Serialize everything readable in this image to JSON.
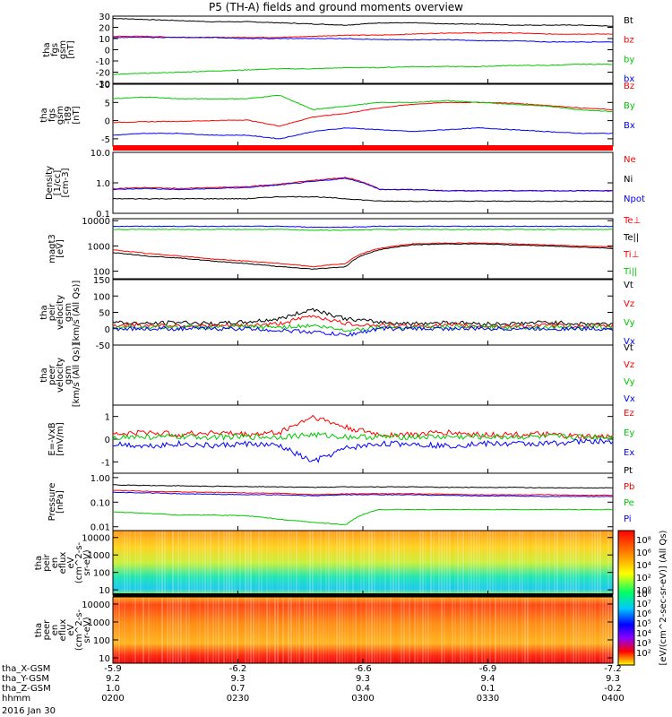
{
  "title": "P5 (TH-A) fields and ground moments overview",
  "colors": {
    "black": "#000000",
    "red": "#ff0000",
    "green": "#00c800",
    "blue": "#0000ff"
  },
  "chart_data": [
    {
      "type": "line",
      "ylabel": [
        "tha",
        "fgs",
        "gsm",
        "[nT]"
      ],
      "yticks": [
        "30",
        "20",
        "10",
        "0",
        "-10",
        "-20",
        "-30"
      ],
      "ylim": [
        -30,
        30
      ],
      "legend": [
        {
          "name": "Bt",
          "color": "#000000"
        },
        {
          "name": "bz",
          "color": "#ff0000"
        },
        {
          "name": "by",
          "color": "#00c800"
        },
        {
          "name": "bx",
          "color": "#0000ff"
        }
      ],
      "series": [
        {
          "name": "Bt",
          "color": "#000000",
          "values": [
            28,
            27,
            26,
            25,
            25,
            24,
            23,
            22,
            24,
            24,
            23,
            23,
            22,
            22,
            22,
            21
          ]
        },
        {
          "name": "bz",
          "color": "#ff0000",
          "values": [
            12,
            12,
            11,
            11,
            11,
            11,
            12,
            13,
            13,
            14,
            15,
            15,
            15,
            14,
            14,
            14
          ]
        },
        {
          "name": "by",
          "color": "#00c800",
          "values": [
            -22,
            -21,
            -20,
            -19,
            -18,
            -17,
            -17,
            -16,
            -16,
            -15,
            -15,
            -15,
            -14,
            -14,
            -13,
            -13
          ]
        },
        {
          "name": "bx",
          "color": "#0000ff",
          "values": [
            11,
            11,
            11,
            11,
            10,
            10,
            10,
            10,
            9,
            9,
            9,
            8,
            8,
            7,
            7,
            7
          ]
        }
      ]
    },
    {
      "type": "line",
      "ylabel": [
        "tha",
        "fgs",
        "gsm",
        "-t89",
        "[nT]"
      ],
      "yticks": [
        "10",
        "5",
        "0",
        "-5"
      ],
      "ylim": [
        -7,
        10
      ],
      "legend": [
        {
          "name": "Bz",
          "color": "#ff0000"
        },
        {
          "name": "By",
          "color": "#00c800"
        },
        {
          "name": "Bx",
          "color": "#0000ff"
        }
      ],
      "series": [
        {
          "name": "Bz",
          "color": "#ff0000",
          "values": [
            -0.5,
            -0.3,
            -0.2,
            0,
            0.2,
            -1.5,
            1,
            2,
            3.5,
            4.5,
            5,
            5,
            4.8,
            4.2,
            3.5,
            3
          ]
        },
        {
          "name": "By",
          "color": "#00c800",
          "values": [
            6,
            6.5,
            6,
            6,
            6,
            7,
            3,
            4,
            5,
            5,
            5.5,
            5,
            4.5,
            4,
            3,
            2.5
          ]
        },
        {
          "name": "Bx",
          "color": "#0000ff",
          "values": [
            -4,
            -3.5,
            -3.5,
            -4,
            -4,
            -5,
            -3,
            -2,
            -2.5,
            -3,
            -2.5,
            -2,
            -2.5,
            -3,
            -3.5,
            -3.5
          ]
        }
      ]
    },
    {
      "type": "line",
      "log": true,
      "ylabel": [
        "Density",
        "[1/cc]",
        "[cm-3]"
      ],
      "yticks": [
        "10.0",
        "1.0",
        "0.1"
      ],
      "ylim": [
        0.1,
        10
      ],
      "legend": [
        {
          "name": "Ne",
          "color": "#ff0000"
        },
        {
          "name": "Ni",
          "color": "#000000"
        },
        {
          "name": "Npot",
          "color": "#0000ff"
        }
      ],
      "series": [
        {
          "name": "Ne",
          "color": "#ff0000",
          "values": [
            0.65,
            0.7,
            0.65,
            0.7,
            0.75,
            0.9,
            1.2,
            1.5,
            0.6,
            0.6,
            0.55,
            0.55,
            0.55,
            0.55,
            0.55,
            0.55
          ]
        },
        {
          "name": "Ni",
          "color": "#000000",
          "values": [
            0.3,
            0.3,
            0.3,
            0.3,
            0.3,
            0.35,
            0.35,
            0.3,
            0.25,
            0.25,
            0.25,
            0.25,
            0.25,
            0.25,
            0.25,
            0.25
          ]
        },
        {
          "name": "Npot",
          "color": "#0000ff",
          "values": [
            0.6,
            0.65,
            0.6,
            0.65,
            0.7,
            0.85,
            1.1,
            1.4,
            0.6,
            0.6,
            0.55,
            0.55,
            0.55,
            0.55,
            0.55,
            0.55
          ]
        }
      ]
    },
    {
      "type": "line",
      "log": true,
      "ylabel": [
        "magt3",
        "[eV]"
      ],
      "yticks": [
        "10000",
        "1000",
        "100"
      ],
      "ylim": [
        50,
        12000
      ],
      "legend": [
        {
          "name": "Te⊥",
          "color": "#ff0000"
        },
        {
          "name": "Te||",
          "color": "#000000"
        },
        {
          "name": "Ti⊥",
          "color": "#ff0000"
        },
        {
          "name": "Ti||",
          "color": "#00c800"
        }
      ],
      "series": [
        {
          "name": "Te⊥",
          "color": "#0000ff",
          "values": [
            6000,
            6000,
            6000,
            6000,
            6000,
            6000,
            5500,
            5500,
            6000,
            6000,
            6000,
            6000,
            6000,
            6000,
            6000,
            6000
          ]
        },
        {
          "name": "Ti||",
          "color": "#00c800",
          "values": [
            4500,
            4500,
            4500,
            4500,
            4500,
            4500,
            4200,
            4200,
            4500,
            4500,
            4500,
            4500,
            4500,
            4500,
            4500,
            4500
          ]
        },
        {
          "name": "Ti⊥",
          "color": "#ff0000",
          "values": [
            700,
            500,
            400,
            300,
            250,
            200,
            150,
            200,
            800,
            1200,
            1300,
            1300,
            1200,
            1100,
            1000,
            900
          ]
        },
        {
          "name": "Te||",
          "color": "#000000",
          "values": [
            550,
            400,
            330,
            250,
            200,
            150,
            120,
            150,
            700,
            1100,
            1200,
            1200,
            1100,
            1000,
            900,
            800
          ]
        }
      ]
    },
    {
      "type": "line",
      "ylabel": [
        "tha",
        "peir",
        "velocity",
        "gsm",
        "[km/s (All Qs)]"
      ],
      "yticks": [
        "150",
        "100",
        "50",
        "0",
        "-50"
      ],
      "ylim": [
        -50,
        150
      ],
      "legend": [
        {
          "name": "Vt",
          "color": "#000000"
        },
        {
          "name": "Vz",
          "color": "#ff0000"
        },
        {
          "name": "Vy",
          "color": "#00c800"
        },
        {
          "name": "Vx",
          "color": "#0000ff"
        }
      ],
      "series": [
        {
          "name": "Vt",
          "color": "#000000",
          "values": [
            20,
            15,
            20,
            15,
            20,
            30,
            60,
            30,
            20,
            15,
            20,
            15,
            15,
            20,
            15,
            15
          ]
        },
        {
          "name": "Vz",
          "color": "#ff0000",
          "values": [
            10,
            10,
            10,
            8,
            10,
            15,
            40,
            15,
            10,
            8,
            10,
            8,
            8,
            10,
            8,
            8
          ]
        },
        {
          "name": "Vy",
          "color": "#00c800",
          "values": [
            5,
            5,
            5,
            4,
            5,
            5,
            10,
            -5,
            5,
            4,
            5,
            4,
            4,
            5,
            4,
            4
          ]
        },
        {
          "name": "Vx",
          "color": "#0000ff",
          "values": [
            0,
            0,
            0,
            0,
            0,
            -5,
            -10,
            -20,
            0,
            0,
            0,
            0,
            0,
            0,
            0,
            0
          ]
        }
      ]
    },
    {
      "type": "line",
      "ylabel": [
        "tha",
        "peer",
        "velocity",
        "gsm",
        "[km/s (All Qs)]"
      ],
      "yticks": [],
      "ylim": [
        0,
        1
      ],
      "legend": [
        {
          "name": "Vt",
          "color": "#000000"
        },
        {
          "name": "Vz",
          "color": "#ff0000"
        },
        {
          "name": "Vy",
          "color": "#00c800"
        },
        {
          "name": "Vx",
          "color": "#0000ff"
        }
      ],
      "series": []
    },
    {
      "type": "line",
      "ylabel": [
        "E=-VxB",
        "[mV/m]"
      ],
      "yticks": [
        "1",
        "0",
        "-1"
      ],
      "ylim": [
        -1.5,
        1.5
      ],
      "legend": [
        {
          "name": "Ez",
          "color": "#ff0000"
        },
        {
          "name": "Ey",
          "color": "#00c800"
        },
        {
          "name": "Ex",
          "color": "#0000ff"
        }
      ],
      "series": [
        {
          "name": "Ez",
          "color": "#ff0000",
          "values": [
            0.2,
            0.3,
            0.2,
            0.3,
            0.2,
            0.3,
            1,
            0.5,
            0.2,
            0.2,
            0.3,
            0.2,
            0.2,
            0.2,
            0.1,
            0.1
          ]
        },
        {
          "name": "Ey",
          "color": "#00c800",
          "values": [
            0.1,
            0.1,
            0.1,
            0.1,
            0.1,
            0.1,
            0.2,
            0.1,
            0.1,
            0.1,
            0.1,
            0.1,
            0.1,
            0.1,
            0.1,
            0.1
          ]
        },
        {
          "name": "Ex",
          "color": "#0000ff",
          "values": [
            -0.2,
            -0.3,
            -0.2,
            -0.3,
            -0.2,
            -0.3,
            -1,
            -0.4,
            -0.2,
            -0.2,
            -0.3,
            -0.2,
            -0.2,
            -0.2,
            -0.1,
            -0.1
          ]
        }
      ]
    },
    {
      "type": "line",
      "log": true,
      "ylabel": [
        "Pressure",
        "[nPa]"
      ],
      "yticks": [
        "1.00",
        "0.10",
        "0.01"
      ],
      "ylim": [
        0.007,
        1.5
      ],
      "legend": [
        {
          "name": "Pt",
          "color": "#000000"
        },
        {
          "name": "Pb",
          "color": "#ff0000"
        },
        {
          "name": "Pe",
          "color": "#00c800"
        },
        {
          "name": "Pi",
          "color": "#0000ff"
        }
      ],
      "series": [
        {
          "name": "Pt",
          "color": "#000000",
          "values": [
            0.5,
            0.48,
            0.46,
            0.44,
            0.43,
            0.42,
            0.4,
            0.42,
            0.42,
            0.42,
            0.4,
            0.4,
            0.4,
            0.38,
            0.38,
            0.38
          ]
        },
        {
          "name": "Pb",
          "color": "#ff0000",
          "values": [
            0.3,
            0.28,
            0.26,
            0.25,
            0.24,
            0.23,
            0.2,
            0.22,
            0.22,
            0.22,
            0.21,
            0.2,
            0.2,
            0.2,
            0.19,
            0.19
          ]
        },
        {
          "name": "Pe",
          "color": "#00c800",
          "values": [
            0.04,
            0.035,
            0.03,
            0.03,
            0.028,
            0.02,
            0.015,
            0.012,
            0.05,
            0.05,
            0.05,
            0.05,
            0.05,
            0.05,
            0.05,
            0.05
          ]
        },
        {
          "name": "Pi",
          "color": "#0000ff",
          "values": [
            0.25,
            0.24,
            0.22,
            0.21,
            0.2,
            0.2,
            0.18,
            0.2,
            0.2,
            0.2,
            0.19,
            0.18,
            0.18,
            0.17,
            0.17,
            0.17
          ]
        }
      ]
    },
    {
      "type": "heatmap",
      "log": true,
      "ylabel": [
        "tha",
        "peir",
        "en",
        "eflux",
        "eV",
        "(cm^2-s-",
        "sr-eV)"
      ],
      "yticks": [
        "10000",
        "1000",
        "100",
        "10"
      ],
      "ylim": [
        5,
        25000
      ]
    },
    {
      "type": "heatmap",
      "log": true,
      "ylabel": [
        "tha",
        "peer",
        "en",
        "eflux",
        "eV",
        "(cm^2-s-",
        "sr-eV)"
      ],
      "yticks": [
        "10000",
        "1000",
        "100",
        "10"
      ],
      "ylim": [
        5,
        25000
      ]
    }
  ],
  "colorbar": {
    "label": "[eV/(cm^2-sec-sr-eV)] (All Qs)",
    "top_ticks": [
      "10⁸",
      "10⁶",
      "10⁴",
      "10²",
      "10⁰"
    ],
    "bottom_ticks": [
      "10⁸",
      "10⁷",
      "10⁶",
      "10⁵",
      "10⁴",
      "10³",
      "10²"
    ]
  },
  "xaxis": {
    "columns": [
      {
        "x": "-5.9",
        "y": "9.2",
        "z": "1.0",
        "hhmm": "0200"
      },
      {
        "x": "-6.2",
        "y": "9.3",
        "z": "0.7",
        "hhmm": "0230"
      },
      {
        "x": "-6.6",
        "y": "9.3",
        "z": "0.4",
        "hhmm": "0300"
      },
      {
        "x": "-6.9",
        "y": "9.4",
        "z": "0.1",
        "hhmm": "0330"
      },
      {
        "x": "-7.2",
        "y": "9.3",
        "z": "-0.2",
        "hhmm": "0400"
      }
    ],
    "row_labels": [
      "tha_X-GSM",
      "tha_Y-GSM",
      "tha_Z-GSM",
      "hhmm"
    ],
    "date": "2016 Jan 30"
  }
}
